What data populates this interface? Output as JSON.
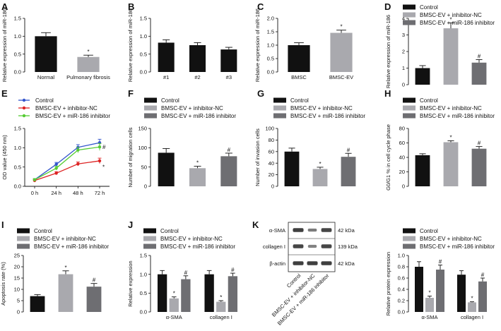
{
  "colors": {
    "black": "#111111",
    "light_gray": "#a9a9ae",
    "dark_gray": "#6e6e72",
    "blue": "#3355cc",
    "red": "#dd2222",
    "green": "#55cc33"
  },
  "chart_data": [
    {
      "id": "A",
      "type": "bar",
      "categories": [
        "Normal",
        "Pulmonary fibrosis"
      ],
      "values": [
        1.0,
        0.42
      ],
      "errors": [
        0.1,
        0.05
      ],
      "colors": [
        "black",
        "light_gray"
      ],
      "marks": [
        "",
        "*"
      ],
      "ylabel": "Relative expression of miR-186",
      "ylim": [
        0,
        1.5
      ],
      "yticks": [
        "0.0",
        "0.5",
        "1.0",
        "1.5"
      ],
      "legend": []
    },
    {
      "id": "B",
      "type": "bar",
      "categories": [
        "#1",
        "#2",
        "#3"
      ],
      "values": [
        0.82,
        0.75,
        0.63
      ],
      "errors": [
        0.08,
        0.07,
        0.06
      ],
      "colors": [
        "black",
        "black",
        "black"
      ],
      "marks": [
        "",
        "",
        ""
      ],
      "ylabel": "Relative expression of miR-186",
      "ylim": [
        0,
        1.5
      ],
      "yticks": [
        "0.0",
        "0.5",
        "1.0",
        "1.5"
      ],
      "legend": []
    },
    {
      "id": "C",
      "type": "bar",
      "categories": [
        "BMSC",
        "BMSC-EV"
      ],
      "values": [
        1.0,
        1.46
      ],
      "errors": [
        0.09,
        0.1
      ],
      "colors": [
        "black",
        "light_gray"
      ],
      "marks": [
        "",
        "*"
      ],
      "ylabel": "Relative expression of miR-186",
      "ylim": [
        0,
        2.0
      ],
      "yticks": [
        "0.0",
        "0.5",
        "1.0",
        "1.5",
        "2.0"
      ],
      "legend": []
    },
    {
      "id": "D",
      "type": "bar",
      "categories": [
        "",
        "",
        ""
      ],
      "values": [
        1.0,
        3.4,
        1.33
      ],
      "errors": [
        0.15,
        0.33,
        0.18
      ],
      "colors": [
        "black",
        "light_gray",
        "dark_gray"
      ],
      "marks": [
        "",
        "*",
        "#"
      ],
      "ylabel": "Relative expression of miR-186",
      "ylim": [
        0,
        4
      ],
      "yticks": [
        "0",
        "1",
        "2",
        "3",
        "4"
      ],
      "legend": [
        "Control",
        "BMSC-EV + inhibitor-NC",
        "BMSC-EV + miR-186 inhibitor"
      ]
    },
    {
      "id": "E",
      "type": "line",
      "x": [
        "0 h",
        "24 h",
        "48 h",
        "72 h"
      ],
      "series": [
        {
          "name": "Control",
          "color": "blue",
          "values": [
            0.17,
            0.57,
            1.01,
            1.13
          ],
          "errors": [
            0.03,
            0.05,
            0.07,
            0.09
          ]
        },
        {
          "name": "BMSC-EV + inhibitor-NC",
          "color": "red",
          "values": [
            0.15,
            0.34,
            0.58,
            0.66
          ],
          "errors": [
            0.02,
            0.04,
            0.05,
            0.07
          ]
        },
        {
          "name": "BMSC-EV + miR-186 inhibitor",
          "color": "green",
          "values": [
            0.17,
            0.47,
            0.94,
            1.02
          ],
          "errors": [
            0.03,
            0.05,
            0.07,
            0.09
          ]
        }
      ],
      "marks": [
        {
          "text": "#",
          "x": "72 h",
          "y": 1.02
        },
        {
          "text": "*",
          "x": "72 h",
          "y": 0.5
        }
      ],
      "ylabel": "OD value (450 nm)",
      "ylim": [
        0,
        1.5
      ],
      "yticks": [
        "0.0",
        "0.5",
        "1.0",
        "1.5"
      ],
      "legend": [
        "Control",
        "BMSC-EV + inhibitor-NC",
        "BMSC-EV + miR-186 inhibitor"
      ]
    },
    {
      "id": "F",
      "type": "bar",
      "categories": [
        "",
        "",
        ""
      ],
      "values": [
        87,
        47,
        78
      ],
      "errors": [
        11,
        5,
        8
      ],
      "colors": [
        "black",
        "light_gray",
        "dark_gray"
      ],
      "marks": [
        "",
        "*",
        "#"
      ],
      "ylabel": "Number of migration cells",
      "ylim": [
        0,
        150
      ],
      "yticks": [
        "0",
        "50",
        "100",
        "150"
      ],
      "legend": [
        "Control",
        "BMSC-EV + inhibitor-NC",
        "BMSC-EV + miR-186 inhibitor"
      ]
    },
    {
      "id": "G",
      "type": "bar",
      "categories": [
        "",
        "",
        ""
      ],
      "values": [
        60,
        30,
        51
      ],
      "errors": [
        6,
        3,
        6
      ],
      "colors": [
        "black",
        "light_gray",
        "dark_gray"
      ],
      "marks": [
        "",
        "*",
        "#"
      ],
      "ylabel": "Number of invasion cells",
      "ylim": [
        0,
        100
      ],
      "yticks": [
        "0",
        "20",
        "40",
        "60",
        "80",
        "100"
      ],
      "legend": [
        "Control",
        "BMSC-EV + inhibitor-NC",
        "BMSC-EV + miR-186 inhibitor"
      ]
    },
    {
      "id": "H",
      "type": "bar",
      "categories": [
        "",
        "",
        ""
      ],
      "values": [
        43,
        61,
        52
      ],
      "errors": [
        2,
        2,
        3
      ],
      "colors": [
        "black",
        "light_gray",
        "dark_gray"
      ],
      "marks": [
        "",
        "*",
        "#"
      ],
      "ylabel": "G0/G1 % in cell cycle phase",
      "ylim": [
        0,
        80
      ],
      "yticks": [
        "0",
        "20",
        "40",
        "60",
        "80"
      ],
      "legend": [
        "Control",
        "BMSC-EV + inhibitor-NC",
        "BMSC-EV + miR-186 inhibitor"
      ]
    },
    {
      "id": "I",
      "type": "bar",
      "categories": [
        "",
        "",
        ""
      ],
      "values": [
        7,
        16.7,
        11.2
      ],
      "errors": [
        0.7,
        1.5,
        1.4
      ],
      "colors": [
        "black",
        "light_gray",
        "dark_gray"
      ],
      "marks": [
        "",
        "*",
        "#"
      ],
      "ylabel": "Apoptosis rate (%)",
      "ylim": [
        0,
        25
      ],
      "yticks": [
        "0",
        "5",
        "10",
        "15",
        "20",
        "25"
      ],
      "legend": [
        "Control",
        "BMSC-EV + inhibitor-NC",
        "BMSC-EV + miR-186 inhibitor"
      ]
    },
    {
      "id": "J",
      "type": "bar",
      "grouped": true,
      "groups": [
        "α-SMA",
        "collagen I"
      ],
      "series": [
        {
          "name": "Control",
          "color": "black",
          "values": [
            1.0,
            1.0
          ],
          "errors": [
            0.1,
            0.1
          ]
        },
        {
          "name": "BMSC-EV + inhibitor-NC",
          "color": "light_gray",
          "values": [
            0.36,
            0.27
          ],
          "errors": [
            0.04,
            0.03
          ]
        },
        {
          "name": "BMSC-EV + miR-186 inhibitor",
          "color": "dark_gray",
          "values": [
            0.87,
            0.95
          ],
          "errors": [
            0.09,
            0.08
          ]
        }
      ],
      "marks": [
        [
          "",
          "*",
          "#"
        ],
        [
          "",
          "*",
          "#"
        ]
      ],
      "ylabel": "Relative expression",
      "ylim": [
        0,
        1.5
      ],
      "yticks": [
        "0.0",
        "0.5",
        "1.0",
        "1.5"
      ],
      "legend": [
        "Control",
        "BMSC-EV + inhibitor-NC",
        "BMSC-EV + miR-186 inhibitor"
      ]
    },
    {
      "id": "K",
      "type": "bar",
      "grouped": true,
      "groups": [
        "α-SMA",
        "collagen I"
      ],
      "series": [
        {
          "name": "Control",
          "color": "black",
          "values": [
            0.8,
            0.66
          ],
          "errors": [
            0.09,
            0.07
          ]
        },
        {
          "name": "BMSC-EV + inhibitor-NC",
          "color": "light_gray",
          "values": [
            0.25,
            0.17
          ],
          "errors": [
            0.03,
            0.01
          ]
        },
        {
          "name": "BMSC-EV + miR-186 inhibitor",
          "color": "dark_gray",
          "values": [
            0.75,
            0.54
          ],
          "errors": [
            0.08,
            0.06
          ]
        }
      ],
      "marks": [
        [
          "",
          "*",
          "#"
        ],
        [
          "",
          "*",
          "#"
        ]
      ],
      "ylabel": "Relative protein expression",
      "ylim": [
        0,
        1.0
      ],
      "yticks": [
        "0.0",
        "0.2",
        "0.4",
        "0.6",
        "0.8",
        "1.0"
      ],
      "legend": [
        "Control",
        "BMSC-EV + inhibitor-NC",
        "BMSC-EV + miR-186 inhibitor"
      ]
    }
  ],
  "panel_labels": [
    "A",
    "B",
    "C",
    "D",
    "E",
    "F",
    "G",
    "H",
    "I",
    "J",
    "K"
  ],
  "western_blot": {
    "proteins": [
      "α-SMA",
      "collagen I",
      "β-actin"
    ],
    "sizes": [
      "42 kDa",
      "139 kDa",
      "42 kDa"
    ],
    "lanes": [
      "Control",
      "BMSC-EV + inhibitor-NC",
      "BMSC-EV + miR-186 inhibitor"
    ],
    "intensity": [
      [
        0.85,
        0.45,
        0.8
      ],
      [
        0.8,
        0.4,
        0.8
      ],
      [
        0.85,
        0.85,
        0.85
      ]
    ]
  }
}
